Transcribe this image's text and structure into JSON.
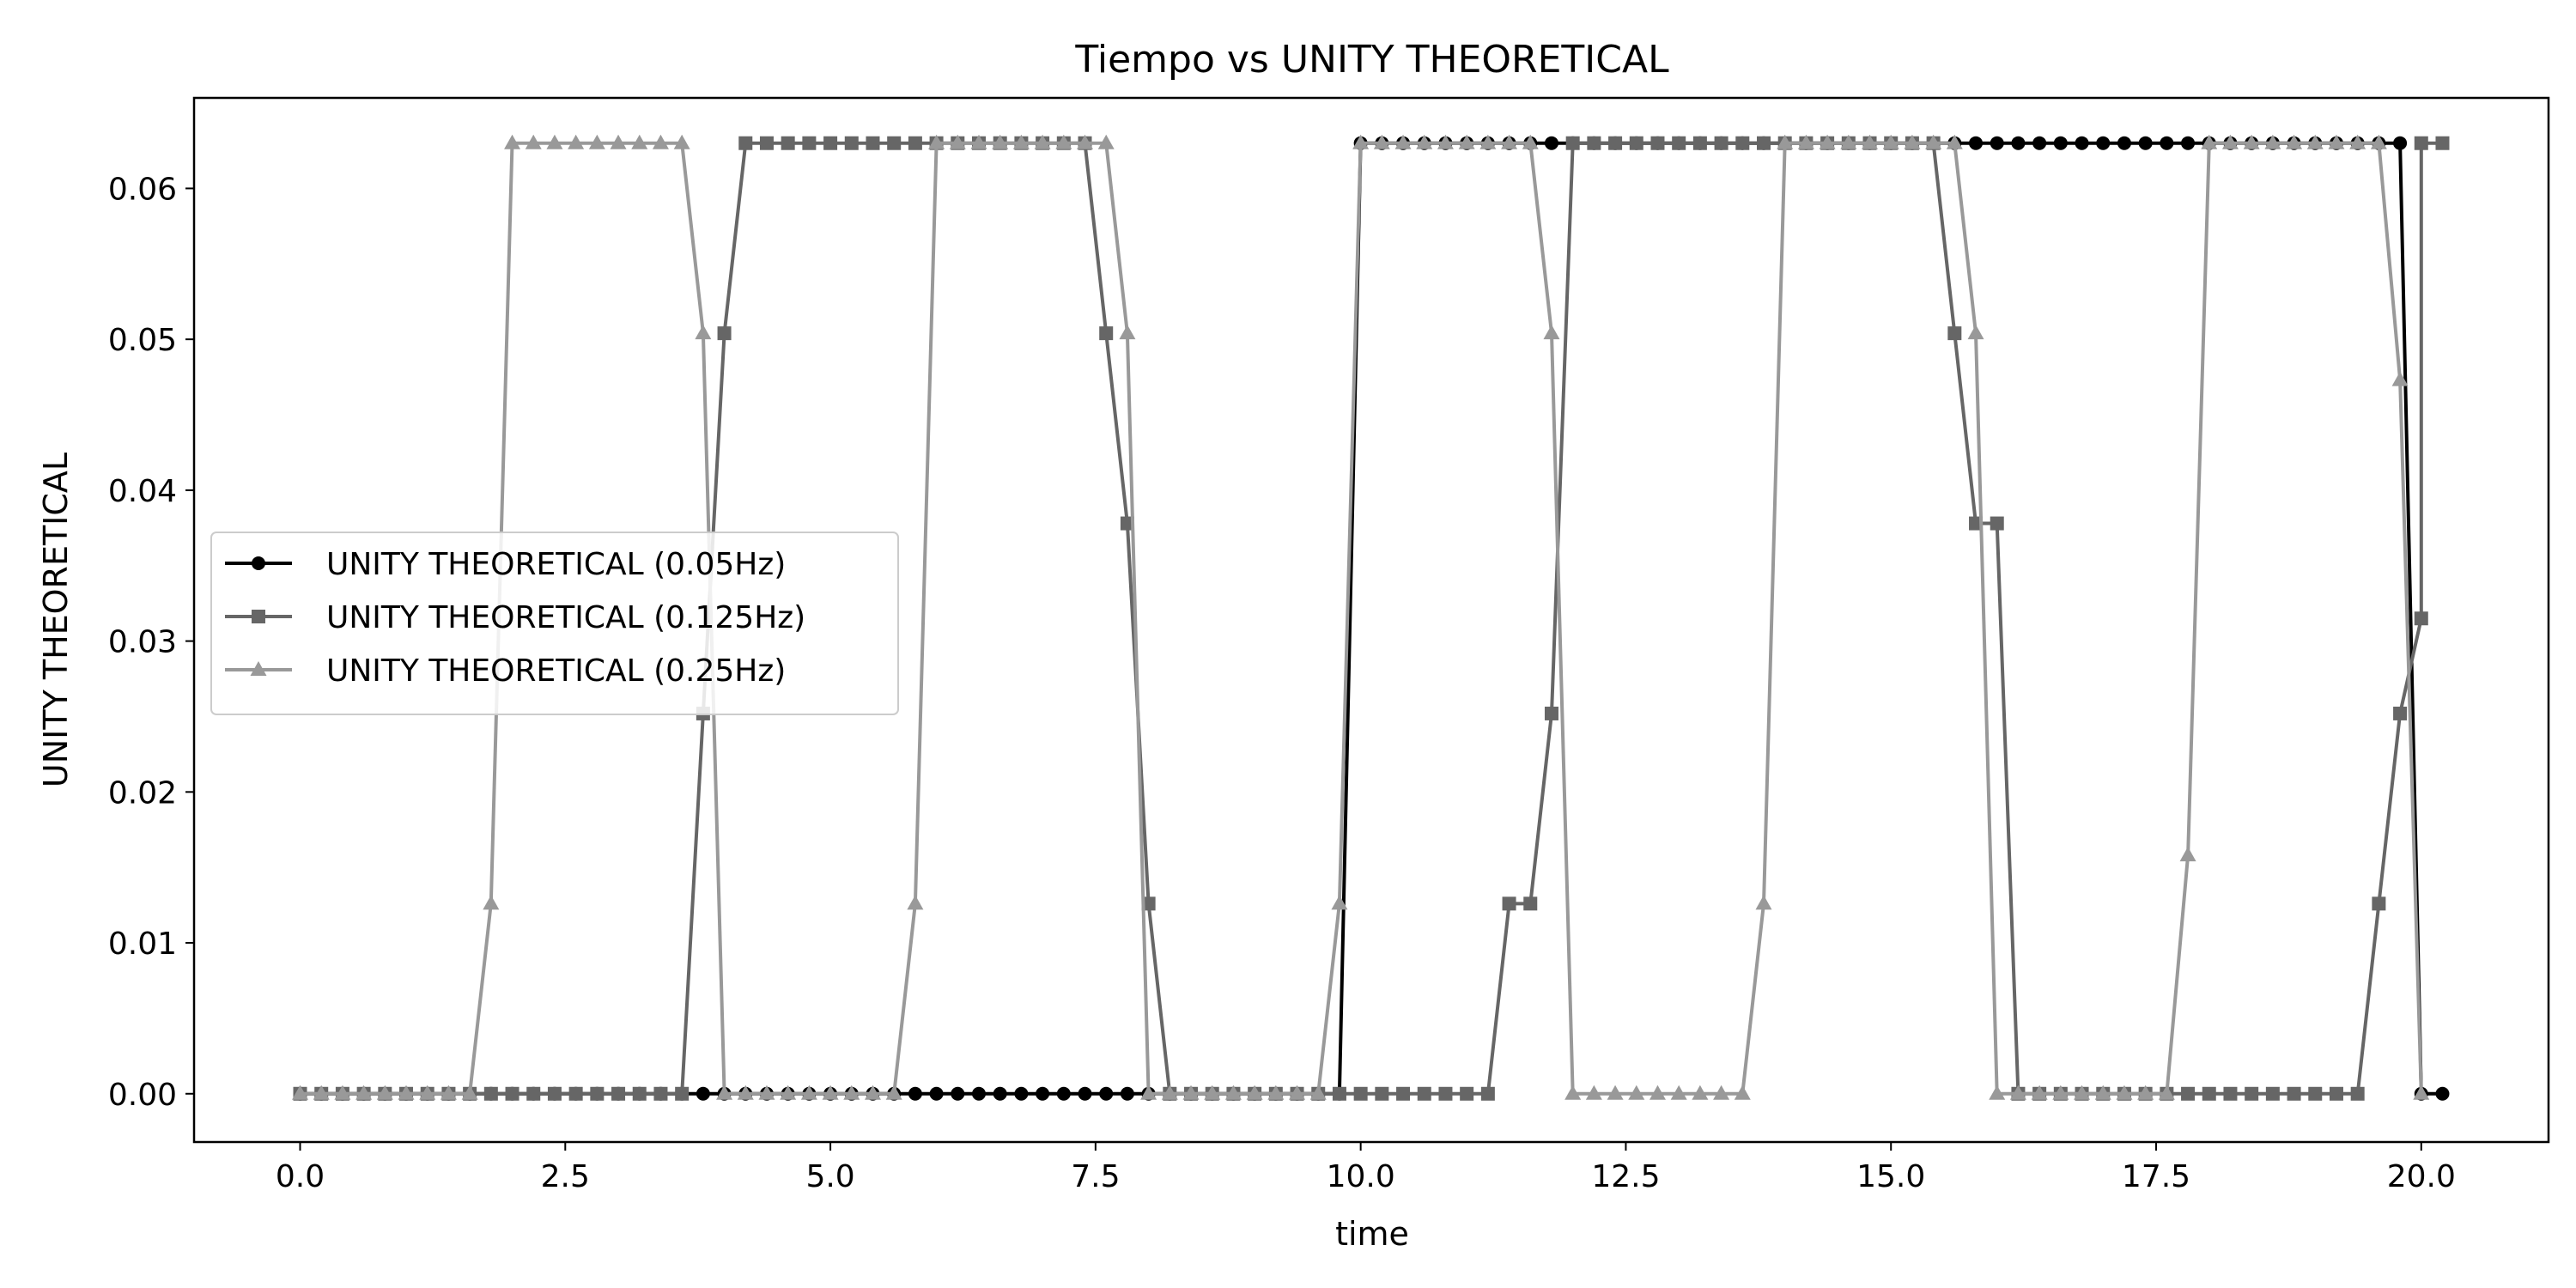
{
  "chart_data": {
    "type": "line",
    "title": "Tiempo vs UNITY THEORETICAL",
    "xlabel": "time",
    "ylabel": "UNITY THEORETICAL",
    "xlim": [
      -1.0,
      21.2
    ],
    "ylim": [
      -0.0032,
      0.066
    ],
    "xticks": [
      0.0,
      2.5,
      5.0,
      7.5,
      10.0,
      12.5,
      15.0,
      17.5,
      20.0
    ],
    "xtick_labels": [
      "0.0",
      "2.5",
      "5.0",
      "7.5",
      "10.0",
      "12.5",
      "15.0",
      "17.5",
      "20.0"
    ],
    "yticks": [
      0.0,
      0.01,
      0.02,
      0.03,
      0.04,
      0.05,
      0.06
    ],
    "ytick_labels": [
      "0.00",
      "0.01",
      "0.02",
      "0.03",
      "0.04",
      "0.05",
      "0.06"
    ],
    "grid": false,
    "legend_position": "center-left",
    "series": [
      {
        "name": "UNITY THEORETICAL (0.05Hz)",
        "color": "#000000",
        "marker": "circle",
        "points": [
          [
            0.0,
            0
          ],
          [
            0.2,
            0
          ],
          [
            0.4,
            0
          ],
          [
            0.6,
            0
          ],
          [
            0.8,
            0
          ],
          [
            1.0,
            0
          ],
          [
            1.2,
            0
          ],
          [
            1.4,
            0
          ],
          [
            1.6,
            0
          ],
          [
            1.8,
            0
          ],
          [
            2.0,
            0
          ],
          [
            2.2,
            0
          ],
          [
            2.4,
            0
          ],
          [
            2.6,
            0
          ],
          [
            2.8,
            0
          ],
          [
            3.0,
            0
          ],
          [
            3.2,
            0
          ],
          [
            3.4,
            0
          ],
          [
            3.6,
            0
          ],
          [
            3.8,
            0
          ],
          [
            4.0,
            0
          ],
          [
            4.2,
            0
          ],
          [
            4.4,
            0
          ],
          [
            4.6,
            0
          ],
          [
            4.8,
            0
          ],
          [
            5.0,
            0
          ],
          [
            5.2,
            0
          ],
          [
            5.4,
            0
          ],
          [
            5.6,
            0
          ],
          [
            5.8,
            0
          ],
          [
            6.0,
            0
          ],
          [
            6.2,
            0
          ],
          [
            6.4,
            0
          ],
          [
            6.6,
            0
          ],
          [
            6.8,
            0
          ],
          [
            7.0,
            0
          ],
          [
            7.2,
            0
          ],
          [
            7.4,
            0
          ],
          [
            7.6,
            0
          ],
          [
            7.8,
            0
          ],
          [
            8.0,
            0
          ],
          [
            8.2,
            0
          ],
          [
            8.4,
            0
          ],
          [
            8.6,
            0
          ],
          [
            8.8,
            0
          ],
          [
            9.0,
            0
          ],
          [
            9.2,
            0
          ],
          [
            9.4,
            0
          ],
          [
            9.6,
            0
          ],
          [
            9.8,
            0
          ],
          [
            10.0,
            0.063
          ],
          [
            10.2,
            0.063
          ],
          [
            10.4,
            0.063
          ],
          [
            10.6,
            0.063
          ],
          [
            10.8,
            0.063
          ],
          [
            11.0,
            0.063
          ],
          [
            11.2,
            0.063
          ],
          [
            11.4,
            0.063
          ],
          [
            11.6,
            0.063
          ],
          [
            11.8,
            0.063
          ],
          [
            12.0,
            0.063
          ],
          [
            12.2,
            0.063
          ],
          [
            12.4,
            0.063
          ],
          [
            12.6,
            0.063
          ],
          [
            12.8,
            0.063
          ],
          [
            13.0,
            0.063
          ],
          [
            13.2,
            0.063
          ],
          [
            13.4,
            0.063
          ],
          [
            13.6,
            0.063
          ],
          [
            13.8,
            0.063
          ],
          [
            14.0,
            0.063
          ],
          [
            14.2,
            0.063
          ],
          [
            14.4,
            0.063
          ],
          [
            14.6,
            0.063
          ],
          [
            14.8,
            0.063
          ],
          [
            15.0,
            0.063
          ],
          [
            15.2,
            0.063
          ],
          [
            15.4,
            0.063
          ],
          [
            15.6,
            0.063
          ],
          [
            15.8,
            0.063
          ],
          [
            16.0,
            0.063
          ],
          [
            16.2,
            0.063
          ],
          [
            16.4,
            0.063
          ],
          [
            16.6,
            0.063
          ],
          [
            16.8,
            0.063
          ],
          [
            17.0,
            0.063
          ],
          [
            17.2,
            0.063
          ],
          [
            17.4,
            0.063
          ],
          [
            17.6,
            0.063
          ],
          [
            17.8,
            0.063
          ],
          [
            18.0,
            0.063
          ],
          [
            18.2,
            0.063
          ],
          [
            18.4,
            0.063
          ],
          [
            18.6,
            0.063
          ],
          [
            18.8,
            0.063
          ],
          [
            19.0,
            0.063
          ],
          [
            19.2,
            0.063
          ],
          [
            19.4,
            0.063
          ],
          [
            19.6,
            0.063
          ],
          [
            19.8,
            0.063
          ],
          [
            20.0,
            0
          ],
          [
            20.2,
            0
          ]
        ]
      },
      {
        "name": "UNITY THEORETICAL (0.125Hz)",
        "color": "#666666",
        "marker": "square",
        "points": [
          [
            0.0,
            0
          ],
          [
            0.2,
            0
          ],
          [
            0.4,
            0
          ],
          [
            0.6,
            0
          ],
          [
            0.8,
            0
          ],
          [
            1.0,
            0
          ],
          [
            1.2,
            0
          ],
          [
            1.4,
            0
          ],
          [
            1.6,
            0
          ],
          [
            1.8,
            0
          ],
          [
            2.0,
            0
          ],
          [
            2.2,
            0
          ],
          [
            2.4,
            0
          ],
          [
            2.6,
            0
          ],
          [
            2.8,
            0
          ],
          [
            3.0,
            0
          ],
          [
            3.2,
            0
          ],
          [
            3.4,
            0
          ],
          [
            3.6,
            0
          ],
          [
            3.8,
            0.0252
          ],
          [
            4.0,
            0.0504
          ],
          [
            4.2,
            0.063
          ],
          [
            4.4,
            0.063
          ],
          [
            4.6,
            0.063
          ],
          [
            4.8,
            0.063
          ],
          [
            5.0,
            0.063
          ],
          [
            5.2,
            0.063
          ],
          [
            5.4,
            0.063
          ],
          [
            5.6,
            0.063
          ],
          [
            5.8,
            0.063
          ],
          [
            6.0,
            0.063
          ],
          [
            6.2,
            0.063
          ],
          [
            6.4,
            0.063
          ],
          [
            6.6,
            0.063
          ],
          [
            6.8,
            0.063
          ],
          [
            7.0,
            0.063
          ],
          [
            7.2,
            0.063
          ],
          [
            7.4,
            0.063
          ],
          [
            7.6,
            0.0504
          ],
          [
            7.8,
            0.0378
          ],
          [
            8.0,
            0.0126
          ],
          [
            8.2,
            0
          ],
          [
            8.4,
            0
          ],
          [
            8.6,
            0
          ],
          [
            8.8,
            0
          ],
          [
            9.0,
            0
          ],
          [
            9.2,
            0
          ],
          [
            9.4,
            0
          ],
          [
            9.6,
            0
          ],
          [
            9.8,
            0
          ],
          [
            10.0,
            0
          ],
          [
            10.2,
            0
          ],
          [
            10.4,
            0
          ],
          [
            10.6,
            0
          ],
          [
            10.8,
            0
          ],
          [
            11.0,
            0
          ],
          [
            11.2,
            0
          ],
          [
            11.4,
            0.0126
          ],
          [
            11.6,
            0.0126
          ],
          [
            11.8,
            0.0252
          ],
          [
            12.0,
            0.063
          ],
          [
            12.2,
            0.063
          ],
          [
            12.4,
            0.063
          ],
          [
            12.6,
            0.063
          ],
          [
            12.8,
            0.063
          ],
          [
            13.0,
            0.063
          ],
          [
            13.2,
            0.063
          ],
          [
            13.4,
            0.063
          ],
          [
            13.6,
            0.063
          ],
          [
            13.8,
            0.063
          ],
          [
            14.0,
            0.063
          ],
          [
            14.2,
            0.063
          ],
          [
            14.4,
            0.063
          ],
          [
            14.6,
            0.063
          ],
          [
            14.8,
            0.063
          ],
          [
            15.0,
            0.063
          ],
          [
            15.2,
            0.063
          ],
          [
            15.4,
            0.063
          ],
          [
            15.6,
            0.0504
          ],
          [
            15.8,
            0.0378
          ],
          [
            16.0,
            0.0378
          ],
          [
            16.2,
            0
          ],
          [
            16.4,
            0
          ],
          [
            16.6,
            0
          ],
          [
            16.8,
            0
          ],
          [
            17.0,
            0
          ],
          [
            17.2,
            0
          ],
          [
            17.4,
            0
          ],
          [
            17.6,
            0
          ],
          [
            17.8,
            0
          ],
          [
            18.0,
            0
          ],
          [
            18.2,
            0
          ],
          [
            18.4,
            0
          ],
          [
            18.6,
            0
          ],
          [
            18.8,
            0
          ],
          [
            19.0,
            0
          ],
          [
            19.2,
            0
          ],
          [
            19.4,
            0
          ],
          [
            19.6,
            0.0126
          ],
          [
            19.8,
            0.0252
          ],
          [
            20.0,
            0.0315
          ],
          [
            20.0,
            0.063
          ],
          [
            20.2,
            0.063
          ]
        ]
      },
      {
        "name": "UNITY THEORETICAL (0.25Hz)",
        "color": "#999999",
        "marker": "triangle",
        "points": [
          [
            0.0,
            0
          ],
          [
            0.2,
            0
          ],
          [
            0.4,
            0
          ],
          [
            0.6,
            0
          ],
          [
            0.8,
            0
          ],
          [
            1.0,
            0
          ],
          [
            1.2,
            0
          ],
          [
            1.4,
            0
          ],
          [
            1.6,
            0
          ],
          [
            1.8,
            0.0126
          ],
          [
            2.0,
            0.063
          ],
          [
            2.2,
            0.063
          ],
          [
            2.4,
            0.063
          ],
          [
            2.6,
            0.063
          ],
          [
            2.8,
            0.063
          ],
          [
            3.0,
            0.063
          ],
          [
            3.2,
            0.063
          ],
          [
            3.4,
            0.063
          ],
          [
            3.6,
            0.063
          ],
          [
            3.8,
            0.0504
          ],
          [
            4.0,
            0
          ],
          [
            4.2,
            0
          ],
          [
            4.4,
            0
          ],
          [
            4.6,
            0
          ],
          [
            4.8,
            0
          ],
          [
            5.0,
            0
          ],
          [
            5.2,
            0
          ],
          [
            5.4,
            0
          ],
          [
            5.6,
            0
          ],
          [
            5.8,
            0.0126
          ],
          [
            6.0,
            0.063
          ],
          [
            6.2,
            0.063
          ],
          [
            6.4,
            0.063
          ],
          [
            6.6,
            0.063
          ],
          [
            6.8,
            0.063
          ],
          [
            7.0,
            0.063
          ],
          [
            7.2,
            0.063
          ],
          [
            7.4,
            0.063
          ],
          [
            7.6,
            0.063
          ],
          [
            7.8,
            0.0504
          ],
          [
            8.0,
            0
          ],
          [
            8.2,
            0
          ],
          [
            8.4,
            0
          ],
          [
            8.6,
            0
          ],
          [
            8.8,
            0
          ],
          [
            9.0,
            0
          ],
          [
            9.2,
            0
          ],
          [
            9.4,
            0
          ],
          [
            9.6,
            0
          ],
          [
            9.8,
            0.0126
          ],
          [
            10.0,
            0.063
          ],
          [
            10.2,
            0.063
          ],
          [
            10.4,
            0.063
          ],
          [
            10.6,
            0.063
          ],
          [
            10.8,
            0.063
          ],
          [
            11.0,
            0.063
          ],
          [
            11.2,
            0.063
          ],
          [
            11.4,
            0.063
          ],
          [
            11.6,
            0.063
          ],
          [
            11.8,
            0.0504
          ],
          [
            12.0,
            0
          ],
          [
            12.2,
            0
          ],
          [
            12.4,
            0
          ],
          [
            12.6,
            0
          ],
          [
            12.8,
            0
          ],
          [
            13.0,
            0
          ],
          [
            13.2,
            0
          ],
          [
            13.4,
            0
          ],
          [
            13.6,
            0
          ],
          [
            13.8,
            0.0126
          ],
          [
            14.0,
            0.063
          ],
          [
            14.2,
            0.063
          ],
          [
            14.4,
            0.063
          ],
          [
            14.6,
            0.063
          ],
          [
            14.8,
            0.063
          ],
          [
            15.0,
            0.063
          ],
          [
            15.2,
            0.063
          ],
          [
            15.4,
            0.063
          ],
          [
            15.6,
            0.063
          ],
          [
            15.8,
            0.0504
          ],
          [
            16.0,
            0
          ],
          [
            16.2,
            0
          ],
          [
            16.4,
            0
          ],
          [
            16.6,
            0
          ],
          [
            16.8,
            0
          ],
          [
            17.0,
            0
          ],
          [
            17.2,
            0
          ],
          [
            17.4,
            0
          ],
          [
            17.6,
            0
          ],
          [
            17.8,
            0.0158
          ],
          [
            18.0,
            0.063
          ],
          [
            18.2,
            0.063
          ],
          [
            18.4,
            0.063
          ],
          [
            18.6,
            0.063
          ],
          [
            18.8,
            0.063
          ],
          [
            19.0,
            0.063
          ],
          [
            19.2,
            0.063
          ],
          [
            19.4,
            0.063
          ],
          [
            19.6,
            0.063
          ],
          [
            19.8,
            0.0473
          ],
          [
            20.0,
            0
          ]
        ]
      }
    ]
  }
}
